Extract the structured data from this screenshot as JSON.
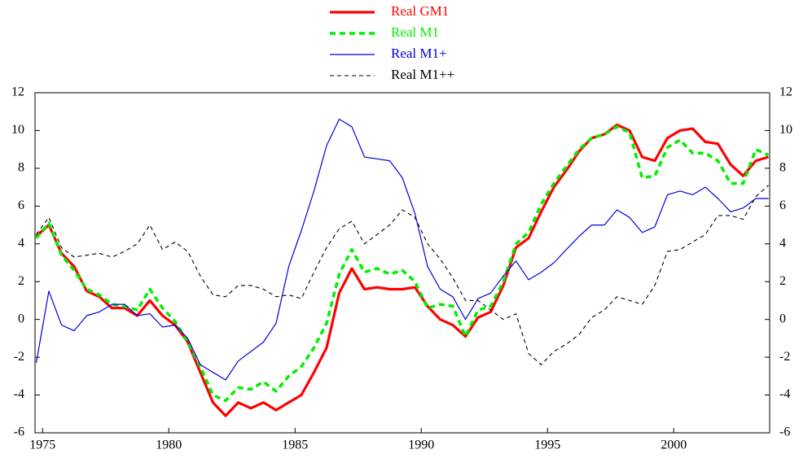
{
  "chart_data": {
    "type": "line",
    "x": [
      1974.75,
      1975.25,
      1975.75,
      1976.25,
      1976.75,
      1977.25,
      1977.75,
      1978.25,
      1978.75,
      1979.25,
      1979.75,
      1980.25,
      1980.75,
      1981.25,
      1981.75,
      1982.25,
      1982.75,
      1983.25,
      1983.75,
      1984.25,
      1984.75,
      1985.25,
      1985.75,
      1986.25,
      1986.75,
      1987.25,
      1987.75,
      1988.25,
      1988.75,
      1989.25,
      1989.75,
      1990.25,
      1990.75,
      1991.25,
      1991.75,
      1992.25,
      1992.75,
      1993.25,
      1993.75,
      1994.25,
      1994.75,
      1995.25,
      1995.75,
      1996.25,
      1996.75,
      1997.25,
      1997.75,
      1998.25,
      1998.75,
      1999.25,
      1999.75,
      2000.25,
      2000.75,
      2001.25,
      2001.75,
      2002.25,
      2002.75,
      2003.25,
      2003.75
    ],
    "series": [
      {
        "name": "Real GM1",
        "color": "#ff0000",
        "style": "solid",
        "width": 3.2,
        "values": [
          4.4,
          5.0,
          3.5,
          2.8,
          1.5,
          1.2,
          0.6,
          0.6,
          0.2,
          1.0,
          0.2,
          -0.3,
          -1.2,
          -2.8,
          -4.4,
          -5.1,
          -4.4,
          -4.7,
          -4.4,
          -4.8,
          -4.4,
          -4.0,
          -2.8,
          -1.5,
          1.4,
          2.7,
          1.6,
          1.7,
          1.6,
          1.6,
          1.7,
          0.7,
          0.0,
          -0.3,
          -0.9,
          0.1,
          0.4,
          1.8,
          3.8,
          4.3,
          5.7,
          7.0,
          7.9,
          8.9,
          9.6,
          9.8,
          10.3,
          10.0,
          8.6,
          8.4,
          9.6,
          10.0,
          10.1,
          9.4,
          9.3,
          8.2,
          7.6,
          8.4,
          8.6
        ]
      },
      {
        "name": "Real M1",
        "color": "#00ee00",
        "style": "dashed",
        "width": 3.5,
        "values": [
          4.3,
          5.1,
          3.4,
          2.6,
          1.6,
          1.3,
          0.8,
          0.7,
          0.5,
          1.6,
          0.6,
          -0.1,
          -1.2,
          -2.5,
          -4.0,
          -4.3,
          -3.6,
          -3.7,
          -3.3,
          -3.8,
          -3.0,
          -2.5,
          -1.5,
          -0.2,
          2.4,
          3.7,
          2.5,
          2.7,
          2.4,
          2.6,
          2.0,
          0.6,
          0.8,
          0.7,
          -0.9,
          0.5,
          0.7,
          2.0,
          4.0,
          4.6,
          6.1,
          7.2,
          8.1,
          9.0,
          9.6,
          9.8,
          10.2,
          9.9,
          7.5,
          7.6,
          9.1,
          9.5,
          8.8,
          8.8,
          8.4,
          7.2,
          7.2,
          9.0,
          8.7
        ]
      },
      {
        "name": "Real M1+",
        "color": "#0000dd",
        "style": "solid",
        "width": 1.2,
        "values": [
          -2.3,
          1.5,
          -0.3,
          -0.6,
          0.2,
          0.4,
          0.8,
          0.8,
          0.2,
          0.3,
          -0.4,
          -0.3,
          -1.0,
          -2.4,
          -2.8,
          -3.2,
          -2.2,
          -1.7,
          -1.2,
          -0.2,
          2.8,
          4.7,
          6.8,
          9.2,
          10.6,
          10.2,
          8.6,
          8.5,
          8.4,
          7.5,
          5.6,
          2.8,
          1.6,
          1.2,
          0.0,
          1.1,
          1.4,
          2.3,
          3.1,
          2.1,
          2.5,
          3.0,
          3.7,
          4.4,
          5.0,
          5.0,
          5.8,
          5.4,
          4.6,
          4.9,
          6.6,
          6.8,
          6.6,
          7.0,
          6.4,
          5.7,
          5.9,
          6.4,
          6.4
        ]
      },
      {
        "name": "Real M1++",
        "color": "#000000",
        "style": "dashed",
        "width": 1.1,
        "values": [
          4.5,
          5.4,
          3.8,
          3.3,
          3.4,
          3.5,
          3.3,
          3.6,
          4.0,
          5.0,
          3.7,
          4.1,
          3.6,
          2.3,
          1.3,
          1.2,
          1.8,
          1.8,
          1.6,
          1.2,
          1.3,
          1.1,
          2.5,
          3.8,
          4.8,
          5.2,
          4.0,
          4.5,
          5.0,
          5.8,
          5.4,
          4.0,
          3.2,
          2.2,
          1.0,
          1.0,
          0.5,
          0.0,
          0.3,
          -1.8,
          -2.4,
          -1.7,
          -1.3,
          -0.8,
          0.1,
          0.5,
          1.2,
          1.0,
          0.8,
          1.8,
          3.6,
          3.7,
          4.1,
          4.5,
          5.5,
          5.5,
          5.3,
          6.5,
          7.1
        ]
      }
    ],
    "xlim": [
      1974.7,
      2003.8
    ],
    "xticks": [
      1975,
      1980,
      1985,
      1990,
      1995,
      2000
    ],
    "ylim": [
      -6,
      12
    ],
    "yticks": [
      -6,
      -4,
      -2,
      0,
      2,
      4,
      6,
      8,
      10,
      12
    ],
    "y2lim": [
      -6,
      12
    ],
    "y2ticks": [
      -6,
      -4,
      -2,
      0,
      2,
      4,
      6,
      8,
      10,
      12
    ],
    "legend": "top"
  }
}
